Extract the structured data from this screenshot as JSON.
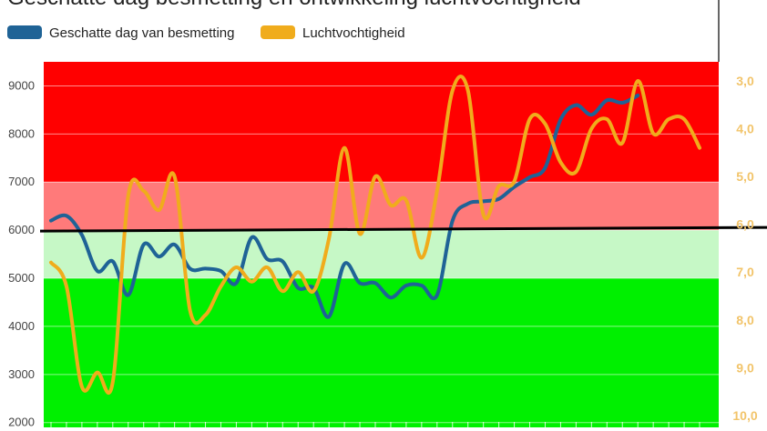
{
  "chart_data": {
    "type": "line",
    "title": "Geschatte dag besmetting en ontwikkeling luchtvochtigheid",
    "legend": {
      "placement": "top-left",
      "items": [
        {
          "name": "Geschatte dag van besmetting",
          "color": "#1f6396"
        },
        {
          "name": "Luchtvochtigheid",
          "color": "#f0ac1c"
        }
      ]
    },
    "y_left": {
      "min": 1900,
      "max": 9500,
      "ticks": [
        "2000",
        "3000",
        "4000",
        "5000",
        "6000",
        "7000",
        "8000",
        "9000"
      ],
      "tick_values": [
        2000,
        3000,
        4000,
        5000,
        6000,
        7000,
        8000,
        9000
      ]
    },
    "y_right": {
      "min": 2.6,
      "max": 10.25,
      "inverted": true,
      "ticks": [
        "3,0",
        "4,0",
        "5,0",
        "6,0",
        "7,0",
        "8,0",
        "9,0",
        "10,0"
      ],
      "tick_values": [
        3,
        4,
        5,
        6,
        7,
        8,
        9,
        10
      ]
    },
    "x": {
      "count": 43,
      "tick_labels_visible": false
    },
    "bands": [
      {
        "from": 7000,
        "to": 9500,
        "color": "#ff0000"
      },
      {
        "from": 6000,
        "to": 7000,
        "color": "#ff7a7a"
      },
      {
        "from": 5000,
        "to": 6000,
        "color": "#c6f8c6"
      },
      {
        "from": 1900,
        "to": 5000,
        "color": "#00f000"
      }
    ],
    "threshold": {
      "value": 6000,
      "color": "#000000"
    },
    "series": [
      {
        "name": "Geschatte dag van besmetting",
        "axis": "left",
        "color": "#1f6396",
        "x": [
          0,
          1,
          2,
          3,
          4,
          5,
          6,
          7,
          8,
          9,
          10,
          11,
          12,
          13,
          14,
          15,
          16,
          17,
          18,
          19,
          20,
          21,
          22,
          23,
          24,
          25,
          26,
          27,
          28,
          29,
          30,
          31,
          32,
          33,
          34,
          35,
          36,
          37,
          38
        ],
        "values": [
          6200,
          6300,
          5900,
          5150,
          5350,
          4650,
          5700,
          5450,
          5700,
          5200,
          5200,
          5150,
          4900,
          5850,
          5400,
          5350,
          4800,
          4800,
          4200,
          5300,
          4900,
          4900,
          4600,
          4850,
          4850,
          4650,
          6200,
          6550,
          6600,
          6650,
          6900,
          7100,
          7300,
          8300,
          8600,
          8400,
          8700,
          8650,
          8800
        ]
      },
      {
        "name": "Luchtvochtigheid",
        "axis": "right",
        "color": "#f0ac1c",
        "x": [
          0,
          1,
          2,
          3,
          4,
          5,
          6,
          7,
          8,
          9,
          10,
          11,
          12,
          13,
          14,
          15,
          16,
          17,
          18,
          19,
          20,
          21,
          22,
          23,
          24,
          25,
          26,
          27,
          28,
          29,
          30,
          31,
          32,
          33,
          34,
          35,
          36,
          37,
          38,
          39,
          40,
          41,
          42
        ],
        "values": [
          6.8,
          7.3,
          9.4,
          9.1,
          9.3,
          5.4,
          5.3,
          5.7,
          5.0,
          7.8,
          7.9,
          7.3,
          6.9,
          7.2,
          6.9,
          7.4,
          7.0,
          7.4,
          6.3,
          4.4,
          6.2,
          5.0,
          5.6,
          5.5,
          6.7,
          5.3,
          3.2,
          3.2,
          5.8,
          5.2,
          5.1,
          3.8,
          3.9,
          4.7,
          4.9,
          4.0,
          3.8,
          4.3,
          3.0,
          4.1,
          3.8,
          3.8,
          4.4
        ]
      }
    ]
  }
}
